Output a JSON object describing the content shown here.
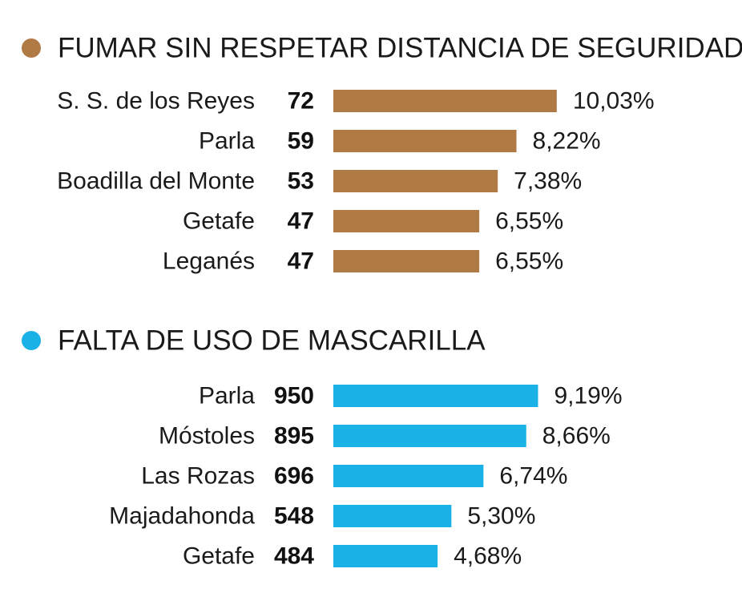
{
  "chart_data": [
    {
      "type": "bar",
      "orientation": "horizontal",
      "title": "FUMAR SIN RESPETAR DISTANCIA DE SEGURIDAD",
      "color": "#b07a45",
      "legend_marker": "brown-dot",
      "categories": [
        "S. S. de los Reyes",
        "Parla",
        "Boadilla del Monte",
        "Getafe",
        "Leganés"
      ],
      "counts": [
        "72",
        "59",
        "53",
        "47",
        "47"
      ],
      "values": [
        10.03,
        8.22,
        7.38,
        6.55,
        6.55
      ],
      "value_labels": [
        "10,03%",
        "8,22%",
        "7,38%",
        "6,55%",
        "6,55%"
      ]
    },
    {
      "type": "bar",
      "orientation": "horizontal",
      "title": "FALTA DE USO DE MASCARILLA",
      "color": "#1ab2e6",
      "legend_marker": "blue-dot",
      "categories": [
        "Parla",
        "Móstoles",
        "Las Rozas",
        "Majadahonda",
        "Getafe"
      ],
      "counts": [
        "950",
        "895",
        "696",
        "548",
        "484"
      ],
      "values": [
        9.19,
        8.66,
        6.74,
        5.3,
        4.68
      ],
      "value_labels": [
        "9,19%",
        "8,66%",
        "6,74%",
        "5,30%",
        "4,68%"
      ]
    }
  ]
}
